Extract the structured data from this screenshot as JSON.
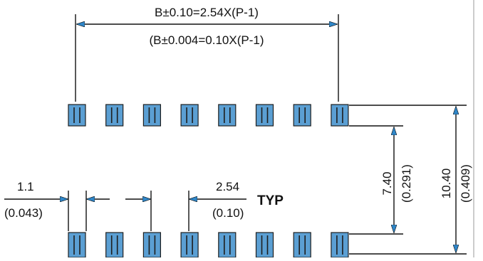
{
  "diagram": {
    "colors": {
      "pad_fill": "#5b9fd3",
      "arrow_fill": "#2f86c8",
      "line": "#111111"
    },
    "overall_span": {
      "metric_label": "B±0.10=2.54X(P-1)",
      "inch_label": "(B±0.004=0.10X(P-1)"
    },
    "pad_width": {
      "metric": "1.1",
      "inch": "(0.043)"
    },
    "pitch": {
      "metric": "2.54",
      "inch": "(0.10)",
      "suffix": "TYP"
    },
    "inner_row_spacing": {
      "metric": "7.40",
      "inch": "(0.291)"
    },
    "outer_row_spacing": {
      "metric": "10.40",
      "inch": "(0.409)"
    },
    "pads_per_row": 8
  }
}
